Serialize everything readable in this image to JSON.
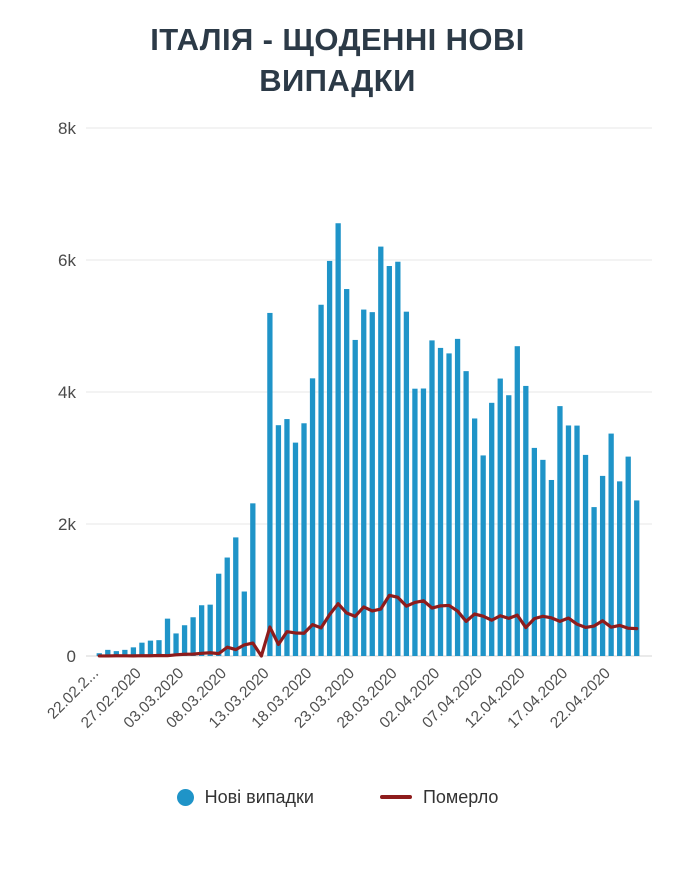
{
  "title": "ІТАЛІЯ - ЩОДЕННІ НОВІ ВИПАДКИ",
  "legend": {
    "cases_label": "Нові випадки",
    "deaths_label": "Померло"
  },
  "colors": {
    "bars": "#1f94c8",
    "line": "#8e1c1c",
    "title": "#2c3a47",
    "axis_text": "#4a4a4a",
    "grid": "#e7e7e7",
    "baseline": "#d6d6d6"
  },
  "chart_data": {
    "type": "bar",
    "title": "ІТАЛІЯ - ЩОДЕННІ НОВІ ВИПАДКИ",
    "xlabel": "",
    "ylabel": "",
    "ylim": [
      0,
      8000
    ],
    "grid": "horizontal",
    "legend_position": "bottom",
    "y_ticks": [
      {
        "value": 0,
        "label": "0"
      },
      {
        "value": 2000,
        "label": "2k"
      },
      {
        "value": 4000,
        "label": "4k"
      },
      {
        "value": 6000,
        "label": "6k"
      },
      {
        "value": 8000,
        "label": "8k"
      }
    ],
    "x_tick_every": 5,
    "x_tick_labels": [
      "22.02.2...",
      "27.02.2020",
      "03.03.2020",
      "08.03.2020",
      "13.03.2020",
      "18.03.2020",
      "23.03.2020",
      "28.03.2020",
      "02.04.2020",
      "07.04.2020",
      "12.04.2020",
      "17.04.2020",
      "22.04.2020"
    ],
    "x": [
      "22.02.2020",
      "23.02.2020",
      "24.02.2020",
      "25.02.2020",
      "26.02.2020",
      "27.02.2020",
      "28.02.2020",
      "29.02.2020",
      "01.03.2020",
      "02.03.2020",
      "03.03.2020",
      "04.03.2020",
      "05.03.2020",
      "06.03.2020",
      "07.03.2020",
      "08.03.2020",
      "09.03.2020",
      "10.03.2020",
      "11.03.2020",
      "12.03.2020",
      "13.03.2020",
      "14.03.2020",
      "15.03.2020",
      "16.03.2020",
      "17.03.2020",
      "18.03.2020",
      "19.03.2020",
      "20.03.2020",
      "21.03.2020",
      "22.03.2020",
      "23.03.2020",
      "24.03.2020",
      "25.03.2020",
      "26.03.2020",
      "27.03.2020",
      "28.03.2020",
      "29.03.2020",
      "30.03.2020",
      "31.03.2020",
      "01.04.2020",
      "02.04.2020",
      "03.04.2020",
      "04.04.2020",
      "05.04.2020",
      "06.04.2020",
      "07.04.2020",
      "08.04.2020",
      "09.04.2020",
      "10.04.2020",
      "11.04.2020",
      "12.04.2020",
      "13.04.2020",
      "14.04.2020",
      "15.04.2020",
      "16.04.2020",
      "17.04.2020",
      "18.04.2020",
      "19.04.2020",
      "20.04.2020",
      "21.04.2020",
      "22.04.2020",
      "23.04.2020",
      "24.04.2020",
      "25.04.2020"
    ],
    "series": [
      {
        "name": "Нові випадки",
        "type": "bar",
        "color": "#1f94c8",
        "values": [
          42,
          93,
          74,
          93,
          131,
          202,
          233,
          240,
          566,
          342,
          466,
          587,
          769,
          778,
          1247,
          1492,
          1797,
          977,
          2313,
          0,
          5198,
          3497,
          3590,
          3233,
          3526,
          4207,
          5322,
          5986,
          6557,
          5560,
          4789,
          5249,
          5210,
          6203,
          5909,
          5974,
          5217,
          4050,
          4053,
          4782,
          4668,
          4585,
          4805,
          4316,
          3599,
          3039,
          3836,
          4204,
          3951,
          4694,
          4092,
          3153,
          2972,
          2667,
          3786,
          3493,
          3491,
          3047,
          2256,
          2729,
          3370,
          2646,
          3021,
          2357
        ]
      },
      {
        "name": "Померло",
        "type": "line",
        "color": "#8e1c1c",
        "values": [
          1,
          1,
          4,
          3,
          2,
          5,
          4,
          8,
          5,
          18,
          27,
          28,
          41,
          49,
          36,
          133,
          97,
          168,
          196,
          0,
          439,
          175,
          368,
          349,
          345,
          475,
          427,
          627,
          793,
          651,
          601,
          743,
          683,
          712,
          919,
          889,
          756,
          812,
          837,
          727,
          760,
          766,
          681,
          525,
          636,
          604,
          542,
          610,
          570,
          619,
          431,
          566,
          602,
          578,
          525,
          575,
          482,
          433,
          454,
          534,
          437,
          464,
          420,
          415
        ]
      }
    ]
  }
}
